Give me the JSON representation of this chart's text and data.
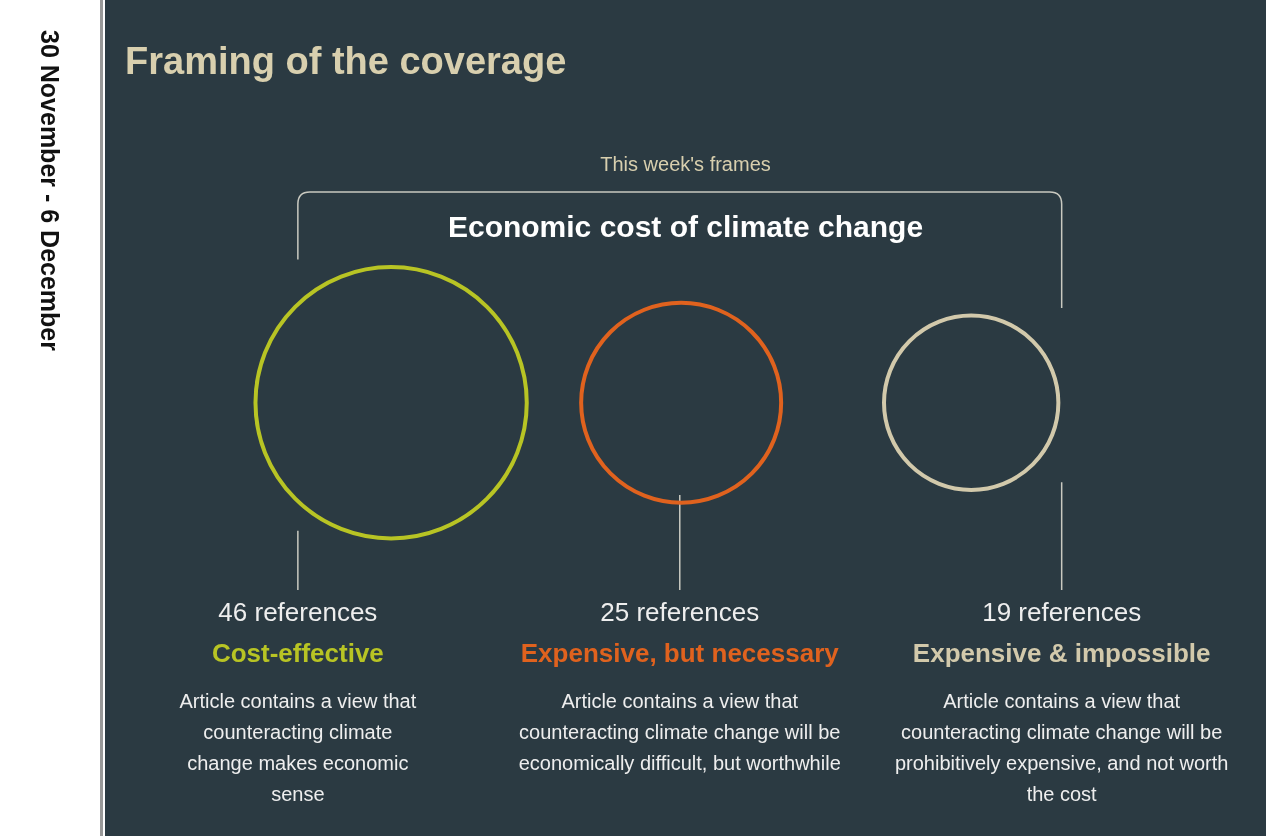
{
  "chart_data": {
    "type": "other",
    "title": "Framing of the coverage",
    "subtitle": "This week's frames",
    "categories": [
      "Cost-effective",
      "Expensive, but necessary",
      "Expensive & impossible"
    ],
    "values": [
      46,
      25,
      19
    ],
    "value_labels": [
      "46 references",
      "25 references",
      "19 references"
    ],
    "colors": [
      "#b8c424",
      "#e0621e",
      "#d2c9ab"
    ],
    "annotations": [
      "30 November - 6 December",
      "Economic cost of climate change",
      "Article contains a view that counteracting climate change makes economic sense",
      "Article contains a view that counteracting climate change will be economically difficult, but worthwhile",
      "Article contains a view that counteracting climate change will be prohibitively expensive, and not worth the cost"
    ]
  }
}
